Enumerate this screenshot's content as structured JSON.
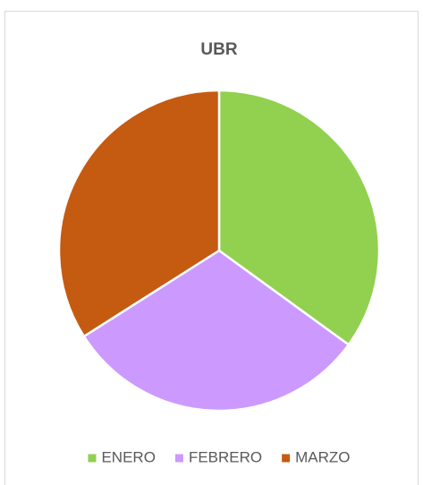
{
  "chart_data": {
    "type": "pie",
    "title": "UBR",
    "categories": [
      "ENERO",
      "FEBRERO",
      "MARZO"
    ],
    "values": [
      35,
      31,
      34
    ],
    "colors": [
      "#92d050",
      "#cc99ff",
      "#c55a11"
    ],
    "legend": "bottom"
  }
}
